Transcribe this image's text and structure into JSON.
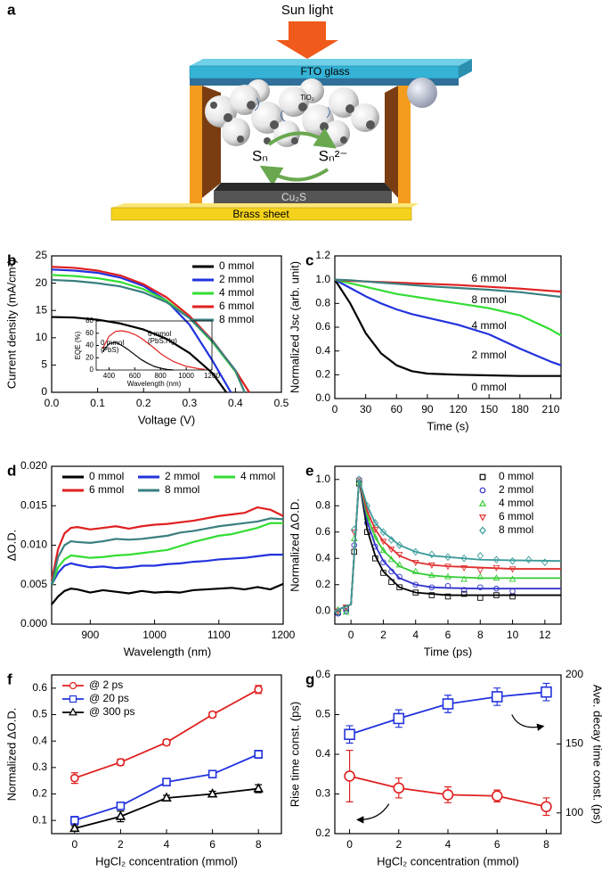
{
  "panel_a": {
    "panel_label": "a",
    "sun_light": "Sun light",
    "fto_glass": "FTO glass",
    "tio2": "TiO₂",
    "polysulfide": "Sₙ",
    "polysulfide_reduced": "Sₙ²⁻",
    "cu2s": "Cu₂S",
    "brass_sheet": "Brass sheet"
  },
  "chart_data": [
    {
      "type": "line",
      "panel_label": "b",
      "xlabel": "Voltage (V)",
      "ylabel": "Current density (mA/cm²)",
      "xlim": [
        0,
        0.5
      ],
      "xticks": [
        {
          "value": 0,
          "label": "0.0"
        },
        0.1,
        0.2,
        0.3,
        0.4,
        0.5
      ],
      "ylim": [
        0,
        25
      ],
      "yticks": [
        0,
        5,
        10,
        15,
        20,
        25
      ],
      "legend": "upper right",
      "series": [
        {
          "name": "0 mmol",
          "color": "#000000",
          "x": [
            0,
            0.05,
            0.1,
            0.15,
            0.2,
            0.25,
            0.3,
            0.35,
            0.38
          ],
          "values": [
            13.8,
            13.7,
            13.3,
            12.6,
            11.5,
            9.8,
            7.2,
            3.5,
            0
          ]
        },
        {
          "name": "2 mmol",
          "color": "#2233dd",
          "x": [
            0,
            0.05,
            0.1,
            0.15,
            0.2,
            0.25,
            0.3,
            0.35,
            0.39
          ],
          "values": [
            22.5,
            22.3,
            21.9,
            21.0,
            19.5,
            16.8,
            12.4,
            5.8,
            0
          ]
        },
        {
          "name": "4 mmol",
          "color": "#33dd33",
          "x": [
            0,
            0.05,
            0.1,
            0.15,
            0.2,
            0.25,
            0.3,
            0.35,
            0.4,
            0.42
          ],
          "values": [
            21.5,
            21.3,
            20.9,
            20.2,
            18.9,
            16.8,
            13.6,
            9.2,
            3.8,
            0
          ]
        },
        {
          "name": "6 mmol",
          "color": "#e02020",
          "x": [
            0,
            0.05,
            0.1,
            0.15,
            0.2,
            0.25,
            0.3,
            0.35,
            0.4,
            0.43
          ],
          "values": [
            23.0,
            22.8,
            22.3,
            21.4,
            19.8,
            17.4,
            14.0,
            9.5,
            4.0,
            0
          ]
        },
        {
          "name": "8 mmol",
          "color": "#3a7f80",
          "x": [
            0,
            0.05,
            0.1,
            0.15,
            0.2,
            0.25,
            0.3,
            0.35,
            0.4,
            0.42
          ],
          "values": [
            20.6,
            20.4,
            20.0,
            19.4,
            18.3,
            16.5,
            13.6,
            9.4,
            4.0,
            0
          ]
        }
      ]
    },
    {
      "type": "line",
      "xlabel": "Wavelength (nm)",
      "ylabel": "EQE (%)",
      "xlim": [
        300,
        1200
      ],
      "xticks": [
        400,
        600,
        800,
        1000,
        1200
      ],
      "ylim": [
        0,
        80
      ],
      "yticks": [
        0,
        20,
        40,
        60,
        80
      ],
      "annotations": [
        "0 mmol",
        "(PbS)",
        "6 mmol",
        "(PbS:Hg)"
      ],
      "series": [
        {
          "color": "#000000",
          "x": [
            350,
            400,
            450,
            500,
            550,
            600,
            650,
            700,
            750,
            800,
            850,
            900
          ],
          "values": [
            30,
            43,
            45,
            40,
            33,
            25,
            17,
            11,
            6,
            3,
            1,
            0
          ]
        },
        {
          "color": "#e02020",
          "x": [
            350,
            400,
            450,
            500,
            550,
            600,
            650,
            700,
            750,
            800,
            850,
            900,
            950,
            1000,
            1050,
            1100,
            1150
          ],
          "values": [
            35,
            55,
            63,
            64,
            62,
            58,
            52,
            44,
            36,
            27,
            20,
            14,
            10,
            6,
            4,
            2,
            1
          ]
        }
      ]
    },
    {
      "type": "line",
      "panel_label": "c",
      "xlabel": "Time (s)",
      "ylabel": "Normalized Jsc (arb. unit)",
      "xlim": [
        0,
        220
      ],
      "xticks": [
        0,
        30,
        60,
        90,
        120,
        150,
        180,
        210
      ],
      "ylim": [
        0,
        1.2
      ],
      "yticks": [
        {
          "value": 0,
          "label": "0.0"
        },
        0.2,
        0.4,
        0.6,
        0.8,
        {
          "value": 1,
          "label": "1.0"
        },
        1.2
      ],
      "series_labels": "inline",
      "x": [
        0,
        15,
        30,
        45,
        60,
        75,
        90,
        120,
        150,
        180,
        210,
        220
      ],
      "series": [
        {
          "name": "0 mmol",
          "color": "#000000",
          "values": [
            1,
            0.8,
            0.55,
            0.38,
            0.28,
            0.23,
            0.21,
            0.2,
            0.195,
            0.19,
            0.19,
            0.19
          ]
        },
        {
          "name": "2 mmol",
          "color": "#2233dd",
          "values": [
            1,
            0.93,
            0.86,
            0.8,
            0.75,
            0.71,
            0.68,
            0.62,
            0.54,
            0.42,
            0.31,
            0.28
          ]
        },
        {
          "name": "4 mmol",
          "color": "#33dd33",
          "values": [
            1,
            0.97,
            0.94,
            0.91,
            0.88,
            0.86,
            0.84,
            0.8,
            0.76,
            0.7,
            0.58,
            0.53
          ]
        },
        {
          "name": "6 mmol",
          "color": "#e02020",
          "values": [
            1,
            0.99,
            0.985,
            0.98,
            0.975,
            0.97,
            0.965,
            0.955,
            0.94,
            0.925,
            0.905,
            0.9
          ]
        },
        {
          "name": "8 mmol",
          "color": "#3a7f80",
          "values": [
            1,
            0.995,
            0.985,
            0.975,
            0.965,
            0.955,
            0.945,
            0.93,
            0.915,
            0.895,
            0.865,
            0.855
          ]
        }
      ]
    },
    {
      "type": "line",
      "panel_label": "d",
      "xlabel": "Wavelength (nm)",
      "ylabel": "ΔO.D.",
      "xlim": [
        840,
        1200
      ],
      "xticks": [
        900,
        1000,
        1100,
        1200
      ],
      "ylim": [
        0,
        0.02
      ],
      "yticks": [
        {
          "value": 0,
          "label": "0.000"
        },
        {
          "value": 0.005,
          "label": "0.005"
        },
        {
          "value": 0.01,
          "label": "0.010"
        },
        {
          "value": 0.015,
          "label": "0.015"
        },
        {
          "value": 0.02,
          "label": "0.020"
        }
      ],
      "legend": "upper left",
      "legend_columns": 3,
      "x": [
        840,
        850,
        860,
        870,
        880,
        900,
        920,
        940,
        960,
        980,
        1000,
        1020,
        1040,
        1060,
        1080,
        1100,
        1120,
        1140,
        1160,
        1180,
        1200
      ],
      "series": [
        {
          "name": "0 mmol",
          "color": "#000000",
          "values": [
            0.0025,
            0.0035,
            0.0042,
            0.0045,
            0.0044,
            0.004,
            0.0043,
            0.0041,
            0.0039,
            0.0042,
            0.004,
            0.0041,
            0.004,
            0.0043,
            0.0044,
            0.0045,
            0.0046,
            0.0044,
            0.0047,
            0.0044,
            0.0051
          ]
        },
        {
          "name": "2 mmol",
          "color": "#2233dd",
          "values": [
            0.005,
            0.0065,
            0.0074,
            0.0077,
            0.0075,
            0.0072,
            0.0073,
            0.0071,
            0.0072,
            0.0074,
            0.0074,
            0.0076,
            0.0077,
            0.0079,
            0.008,
            0.0082,
            0.0083,
            0.0084,
            0.0086,
            0.0088,
            0.0088
          ]
        },
        {
          "name": "4 mmol",
          "color": "#33dd33",
          "values": [
            0.005,
            0.0072,
            0.0082,
            0.0087,
            0.0086,
            0.0084,
            0.0085,
            0.0087,
            0.0088,
            0.009,
            0.0092,
            0.0094,
            0.0099,
            0.0104,
            0.0108,
            0.0112,
            0.0114,
            0.0118,
            0.0122,
            0.0128,
            0.0128
          ]
        },
        {
          "name": "6 mmol",
          "color": "#e02020",
          "values": [
            0.0055,
            0.0095,
            0.0115,
            0.0122,
            0.0123,
            0.012,
            0.0122,
            0.0124,
            0.0121,
            0.0124,
            0.0126,
            0.0127,
            0.0129,
            0.0131,
            0.0134,
            0.0137,
            0.0139,
            0.0141,
            0.0148,
            0.0145,
            0.0137
          ]
        },
        {
          "name": "8 mmol",
          "color": "#3a7f80",
          "values": [
            0.005,
            0.0085,
            0.01,
            0.0105,
            0.0104,
            0.0103,
            0.0105,
            0.0108,
            0.0107,
            0.0108,
            0.011,
            0.0112,
            0.0116,
            0.0118,
            0.0121,
            0.0124,
            0.0126,
            0.0128,
            0.013,
            0.0134,
            0.0133
          ]
        }
      ]
    },
    {
      "type": "scatter",
      "panel_label": "e",
      "xlabel": "Time (ps)",
      "ylabel": "Normalized ΔO.D.",
      "xlim": [
        -1,
        13
      ],
      "xticks": [
        0,
        2,
        4,
        6,
        8,
        10,
        12
      ],
      "ylim": [
        -0.1,
        1.1
      ],
      "yticks": [
        {
          "value": 0,
          "label": "0.0"
        },
        0.2,
        0.4,
        0.6,
        0.8,
        {
          "value": 1,
          "label": "1.0"
        }
      ],
      "legend": "upper right",
      "x": [
        -0.8,
        -0.3,
        0.2,
        0.5,
        1,
        1.5,
        2,
        2.5,
        3,
        4,
        5,
        6,
        7,
        8,
        9,
        10
      ],
      "fit_x": [
        -1,
        0,
        0.5,
        1,
        1.5,
        2,
        3,
        4,
        5,
        6,
        8,
        10,
        13
      ],
      "series": [
        {
          "name": "0 mmol",
          "color": "#000000",
          "marker": "square",
          "values": [
            -0.01,
            0.02,
            0.45,
            0.97,
            0.6,
            0.4,
            0.29,
            0.22,
            0.18,
            0.14,
            0.12,
            0.11,
            0.13,
            0.1,
            0.12,
            0.11
          ],
          "fit": [
            0,
            0.05,
            1,
            0.62,
            0.42,
            0.3,
            0.18,
            0.14,
            0.13,
            0.12,
            0.12,
            0.12,
            0.12
          ]
        },
        {
          "name": "2 mmol",
          "color": "#3333cc",
          "marker": "circle",
          "values": [
            -0.02,
            0,
            0.5,
            1,
            0.67,
            0.49,
            0.37,
            0.3,
            0.26,
            0.2,
            0.18,
            0.19,
            0.16,
            0.18,
            0.17,
            0.15
          ],
          "fit": [
            0,
            0.05,
            1,
            0.68,
            0.5,
            0.38,
            0.25,
            0.2,
            0.18,
            0.175,
            0.17,
            0.17,
            0.17
          ]
        },
        {
          "name": "4 mmol",
          "color": "#33cc33",
          "marker": "triangle-up",
          "values": [
            0.01,
            -0.01,
            0.55,
            0.98,
            0.71,
            0.56,
            0.46,
            0.39,
            0.35,
            0.3,
            0.27,
            0.26,
            0.24,
            0.26,
            0.25,
            0.24
          ],
          "fit": [
            0,
            0.05,
            1,
            0.72,
            0.56,
            0.46,
            0.34,
            0.29,
            0.27,
            0.26,
            0.25,
            0.25,
            0.25
          ]
        },
        {
          "name": "6 mmol",
          "color": "#e03030",
          "marker": "triangle-down",
          "values": [
            0,
            0.03,
            0.6,
            0.99,
            0.75,
            0.62,
            0.53,
            0.47,
            0.43,
            0.37,
            0.35,
            0.34,
            0.33,
            0.31,
            0.33,
            0.32
          ],
          "fit": [
            0,
            0.05,
            1,
            0.76,
            0.62,
            0.53,
            0.42,
            0.37,
            0.35,
            0.34,
            0.33,
            0.32,
            0.32
          ]
        },
        {
          "name": "8 mmol",
          "color": "#3c9c9c",
          "marker": "diamond",
          "x": [
            -0.8,
            -0.3,
            0.2,
            0.5,
            1,
            1.5,
            2,
            2.5,
            3,
            4,
            5,
            6,
            7,
            8,
            9,
            10,
            11,
            12
          ],
          "values": [
            -0.01,
            0.02,
            0.62,
            1,
            0.8,
            0.67,
            0.6,
            0.54,
            0.5,
            0.45,
            0.43,
            0.41,
            0.4,
            0.42,
            0.39,
            0.38,
            0.39,
            0.37
          ],
          "fit": [
            0,
            0.05,
            1,
            0.8,
            0.67,
            0.6,
            0.5,
            0.45,
            0.42,
            0.41,
            0.39,
            0.385,
            0.38
          ]
        }
      ]
    },
    {
      "type": "errorbar",
      "panel_label": "f",
      "xlabel": "HgCl₂ concentration (mmol)",
      "ylabel": "Normalized ΔO.D.",
      "xlim": [
        -1,
        9
      ],
      "xticks": [
        0,
        2,
        4,
        6,
        8
      ],
      "ylim": [
        0.05,
        0.65
      ],
      "yticks": [
        0.1,
        0.2,
        0.3,
        0.4,
        0.5,
        0.6
      ],
      "legend": "upper left",
      "x": [
        0,
        2,
        4,
        6,
        8
      ],
      "series": [
        {
          "name": "@ 2 ps",
          "color": "#e02020",
          "marker": "circle",
          "values": [
            0.26,
            0.32,
            0.395,
            0.5,
            0.595
          ],
          "errors": [
            0.02,
            0.012,
            0.01,
            0.01,
            0.015
          ]
        },
        {
          "name": "@ 20 ps",
          "color": "#2233dd",
          "marker": "square",
          "values": [
            0.1,
            0.155,
            0.245,
            0.275,
            0.35
          ],
          "errors": [
            0.015,
            0.008,
            0.01,
            0.01,
            0.015
          ]
        },
        {
          "name": "@ 300 ps",
          "color": "#000000",
          "marker": "triangle-up",
          "values": [
            0.07,
            0.115,
            0.185,
            0.2,
            0.22
          ],
          "errors": [
            0.01,
            0.02,
            0.01,
            0.01,
            0.015
          ]
        }
      ]
    },
    {
      "type": "errorbar",
      "panel_label": "g",
      "xlabel": "HgCl₂ concentration (mmol)",
      "ylabel": "Rise time const. (ps)",
      "y2label": "Ave. decay time const. (ps)",
      "xlim": [
        -0.6,
        8.6
      ],
      "xticks": [
        0,
        2,
        4,
        6,
        8
      ],
      "ylim": [
        0.2,
        0.6
      ],
      "yticks": [
        0.2,
        0.3,
        0.4,
        0.5,
        0.6
      ],
      "y2lim": [
        85,
        200
      ],
      "y2ticks": [
        100,
        150,
        200
      ],
      "x": [
        0,
        2,
        4,
        6,
        8
      ],
      "series": [
        {
          "color": "#e02020",
          "marker": "circle",
          "values": [
            0.345,
            0.315,
            0.298,
            0.295,
            0.268
          ],
          "errors": [
            0.065,
            0.025,
            0.02,
            0.015,
            0.022
          ]
        },
        {
          "color": "#2233dd",
          "marker": "square",
          "axis": "y2",
          "values": [
            156.9,
            168.4,
            179,
            184.2,
            187.6
          ],
          "errors": [
            6.3,
            6.3,
            6.3,
            6.3,
            6.3
          ]
        }
      ]
    }
  ]
}
